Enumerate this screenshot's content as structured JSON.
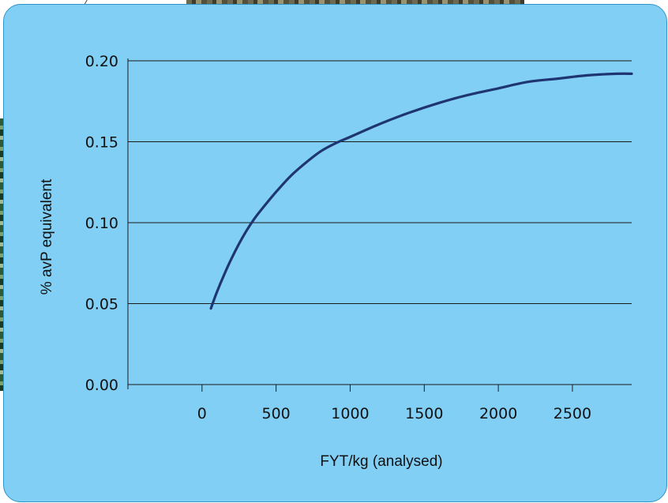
{
  "chart_data": {
    "type": "line",
    "title": "",
    "xlabel": "FYT/kg (analysed)",
    "ylabel": "% avP equivalent",
    "xlim": [
      -500,
      2900
    ],
    "ylim": [
      0,
      0.2
    ],
    "x_ticks": [
      0,
      500,
      1000,
      1500,
      2000,
      2500
    ],
    "x_tick_labels": [
      "0",
      "500",
      "1000",
      "1500",
      "2000",
      "2500"
    ],
    "y_ticks": [
      0,
      0.05,
      0.1,
      0.15,
      0.2
    ],
    "y_tick_labels": [
      "0.00",
      "0.05",
      "0.10",
      "0.15",
      "0.20"
    ],
    "grid": "horizontal",
    "line_color": "#1f3572",
    "background_color": "#82cff5",
    "series": [
      {
        "x": [
          60,
          100,
          150,
          200,
          250,
          300,
          350,
          400,
          500,
          600,
          700,
          800,
          900,
          1000,
          1200,
          1400,
          1600,
          1800,
          2000,
          2200,
          2400,
          2600,
          2800,
          2900
        ],
        "y": [
          0.047,
          0.057,
          0.068,
          0.078,
          0.087,
          0.095,
          0.102,
          0.108,
          0.119,
          0.129,
          0.137,
          0.144,
          0.149,
          0.153,
          0.161,
          0.168,
          0.174,
          0.179,
          0.183,
          0.187,
          0.189,
          0.191,
          0.192,
          0.192
        ]
      }
    ]
  }
}
